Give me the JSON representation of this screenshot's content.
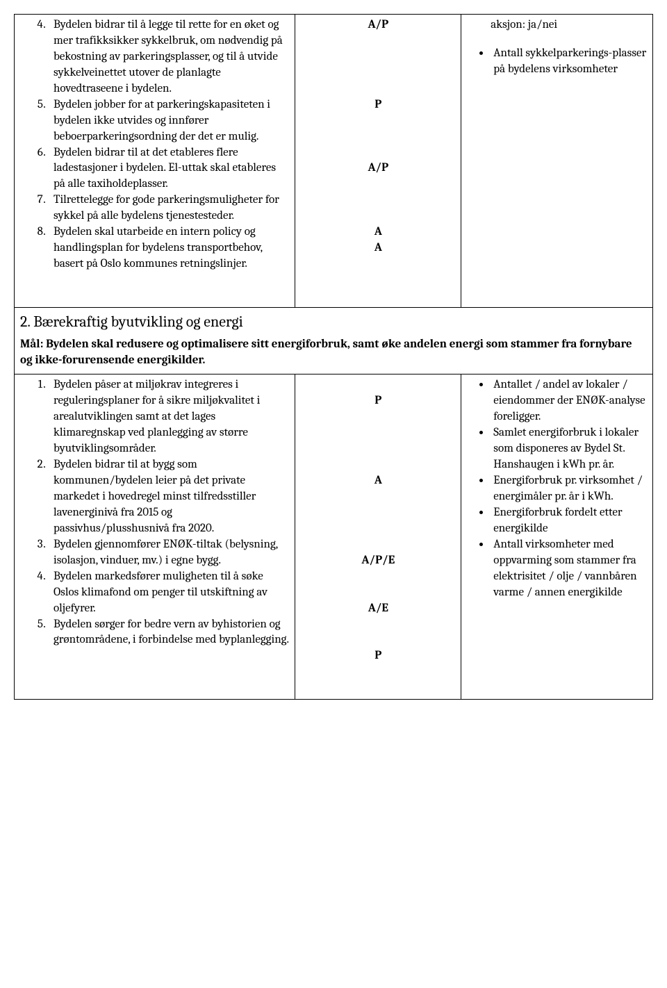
{
  "section1": {
    "startNumber": 4,
    "items": [
      {
        "text": "Bydelen bidrar til å legge til rette for en øket og mer trafikksikker sykkelbruk, om nødvendig på bekostning av parkeringsplasser, og til å utvide sykkelveinettet utover de planlagte hovedtraseene i bydelen.",
        "code": "A/P",
        "codeLines": 5
      },
      {
        "text": "Bydelen jobber for at parkeringskapasiteten i bydelen ikke utvides og innfører beboerparkeringsordning der det er mulig.",
        "code": "P",
        "codeLines": 4
      },
      {
        "text": "Bydelen bidrar til at det etableres flere ladestasjoner i bydelen. El-uttak skal etableres på alle taxiholdeplasser.",
        "code": "A/P",
        "codeLines": 4
      },
      {
        "text": "Tilrettelegge for gode parkeringsmuligheter for sykkel på alle bydelens tjenestesteder.",
        "code": "A",
        "codeLines": 1
      },
      {
        "text": "Bydelen skal utarbeide en intern policy og handlingsplan for bydelens transportbehov, basert på Oslo kommunes retningslinjer.",
        "code": "A",
        "codeLines": 4
      }
    ],
    "rightPre": "aksjon: ja/nei",
    "rightBullets": [
      "Antall sykkelparkerings-plasser på bydelens virksomheter"
    ]
  },
  "section2": {
    "title": "2. Bærekraftig byutvikling og energi",
    "subtitle": "Mål: Bydelen skal redusere og optimalisere sitt energiforbruk, samt øke andelen energi som stammer fra fornybare og ikke-forurensende energikilder.",
    "startNumber": 1,
    "items": [
      {
        "text": "Bydelen påser at miljøkrav integreres i reguleringsplaner for å sikre miljøkvalitet i arealutviklingen samt at det lages klimaregnskap ved planlegging av større byutviklingsområder.",
        "code": "P",
        "codeTopPad": 1,
        "codeLines": 5
      },
      {
        "text": "Bydelen bidrar til at bygg som kommunen/bydelen leier på det private markedet i hovedregel minst tilfredsstiller lavenerginivå fra 2015 og passivhus/plusshusnivå fra 2020.",
        "code": "A",
        "codeLines": 5
      },
      {
        "text": "Bydelen gjennomfører ENØK-tiltak (belysning, isolasjon, vinduer, mv.) i egne bygg.",
        "code": "A/P/E",
        "codeLines": 3
      },
      {
        "text": "Bydelen markedsfører muligheten til å søke Oslos klimafond om penger til utskiftning av oljefyrer.",
        "code": "A/E",
        "codeLines": 3
      },
      {
        "text": "Bydelen sørger for bedre vern av byhistorien og grøntområdene, i forbindelse med byplanlegging.",
        "code": "P",
        "codeLines": 3
      }
    ],
    "rightBullets": [
      "Antallet / andel av lokaler / eiendommer der ENØK-analyse foreligger.",
      "Samlet energiforbruk i lokaler som disponeres av Bydel St. Hanshaugen i kWh pr. år.",
      "Energiforbruk pr. virksomhet / energimåler pr. år i kWh.",
      "Energiforbruk fordelt etter energikilde",
      "Antall virksomheter med oppvarming som stammer fra elektrisitet / olje / vannbåren varme / annen energikilde"
    ]
  }
}
